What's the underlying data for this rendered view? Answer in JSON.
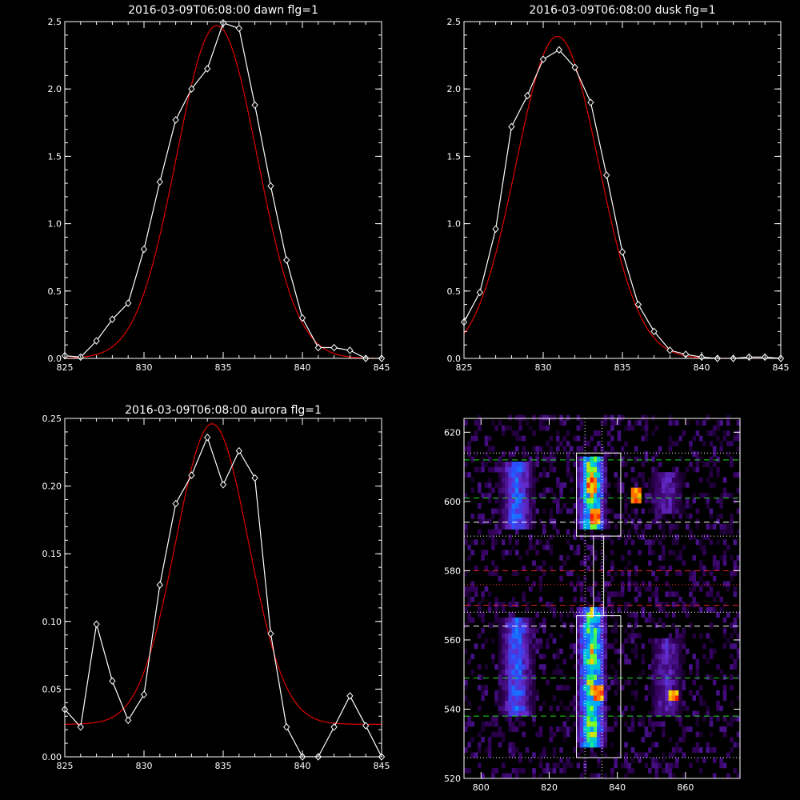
{
  "chart_data": [
    {
      "type": "line",
      "title": "2016-03-09T06:08:00 dawn flg=1",
      "xlim": [
        825,
        845
      ],
      "ylim": [
        0,
        2.5
      ],
      "xticks": [
        825,
        830,
        835,
        840,
        845
      ],
      "yticks": [
        0.0,
        0.5,
        1.0,
        1.5,
        2.0,
        2.5
      ],
      "ytick_format": 1,
      "fit": {
        "color": "#e00000",
        "amplitude": 2.47,
        "center": 834.6,
        "sigma": 2.55,
        "offset": 0.0
      },
      "series": [
        {
          "color": "#ffffff",
          "x": [
            825,
            826,
            827,
            828,
            829,
            830,
            831,
            832,
            833,
            834,
            835,
            836,
            837,
            838,
            839,
            840,
            841,
            842,
            843,
            844,
            845
          ],
          "y": [
            0.02,
            0.01,
            0.13,
            0.29,
            0.41,
            0.81,
            1.31,
            1.77,
            2.0,
            2.15,
            2.49,
            2.45,
            1.88,
            1.28,
            0.73,
            0.3,
            0.08,
            0.08,
            0.06,
            0.0,
            0.0
          ]
        }
      ]
    },
    {
      "type": "line",
      "title": "2016-03-09T06:08:00 dusk flg=1",
      "xlim": [
        825,
        845
      ],
      "ylim": [
        0,
        2.5
      ],
      "xticks": [
        825,
        830,
        835,
        840,
        845
      ],
      "yticks": [
        0.0,
        0.5,
        1.0,
        1.5,
        2.0,
        2.5
      ],
      "ytick_format": 1,
      "fit": {
        "color": "#e00000",
        "amplitude": 2.39,
        "center": 830.9,
        "sigma": 2.6,
        "offset": 0.0
      },
      "series": [
        {
          "color": "#ffffff",
          "x": [
            825,
            826,
            827,
            828,
            829,
            830,
            831,
            832,
            833,
            834,
            835,
            836,
            837,
            838,
            839,
            840,
            841,
            842,
            843,
            844,
            845
          ],
          "y": [
            0.27,
            0.49,
            0.96,
            1.72,
            1.95,
            2.22,
            2.29,
            2.16,
            1.9,
            1.36,
            0.79,
            0.4,
            0.2,
            0.06,
            0.03,
            0.01,
            0.0,
            0.0,
            0.01,
            0.01,
            0.0
          ]
        }
      ]
    },
    {
      "type": "line",
      "title": "2016-03-09T06:08:00 aurora flg=1",
      "xlim": [
        825,
        845
      ],
      "ylim": [
        0,
        0.25
      ],
      "xticks": [
        825,
        830,
        835,
        840,
        845
      ],
      "yticks": [
        0.0,
        0.05,
        0.1,
        0.15,
        0.2,
        0.25
      ],
      "ytick_format": 2,
      "fit": {
        "color": "#e00000",
        "amplitude": 0.222,
        "center": 834.3,
        "sigma": 2.3,
        "offset": 0.024
      },
      "series": [
        {
          "color": "#ffffff",
          "x": [
            825,
            826,
            827,
            828,
            829,
            830,
            831,
            832,
            833,
            834,
            835,
            836,
            837,
            838,
            839,
            840,
            841,
            842,
            843,
            844,
            845
          ],
          "y": [
            0.035,
            0.022,
            0.098,
            0.056,
            0.027,
            0.046,
            0.127,
            0.187,
            0.208,
            0.236,
            0.201,
            0.226,
            0.206,
            0.091,
            0.022,
            0.0,
            0.0,
            0.022,
            0.045,
            0.023,
            0.0
          ]
        }
      ]
    },
    {
      "type": "heatmap",
      "title": "",
      "xlim": [
        795,
        876
      ],
      "ylim": [
        520,
        624
      ],
      "xticks": [
        800,
        820,
        840,
        860
      ],
      "yticks": [
        520,
        540,
        560,
        580,
        600,
        620
      ],
      "bands": [
        {
          "x": 810,
          "halfwidth": 4,
          "ranges": [
            [
              592,
              610
            ],
            [
              538,
              566
            ]
          ],
          "strength": 0.55
        },
        {
          "x": 832,
          "halfwidth": 3.5,
          "ranges": [
            [
              592,
              612
            ],
            [
              528,
              568
            ]
          ],
          "strength": 0.95
        },
        {
          "x": 854,
          "halfwidth": 4,
          "ranges": [
            [
              596,
              608
            ],
            [
              538,
              560
            ]
          ],
          "strength": 0.35
        }
      ],
      "hotspots": [
        [
          832,
          604
        ],
        [
          834,
          544
        ],
        [
          833,
          595
        ],
        [
          856,
          543
        ],
        [
          845,
          601
        ]
      ],
      "boxes": [
        {
          "x0": 828,
          "x1": 841,
          "y0": 590,
          "y1": 614
        },
        {
          "x0": 833,
          "x1": 836,
          "y0": 567,
          "y1": 590
        },
        {
          "x0": 828,
          "x1": 841,
          "y0": 526,
          "y1": 567
        }
      ],
      "vlines": [
        {
          "x": 830.5,
          "style": "dotted",
          "color": "#ffffff"
        },
        {
          "x": 835.5,
          "style": "dotted",
          "color": "#ffffff"
        }
      ],
      "hlines": [
        {
          "y": 614,
          "style": "dotted",
          "color": "#ffffff"
        },
        {
          "y": 612,
          "style": "dashed",
          "color": "#22dd22"
        },
        {
          "y": 601,
          "style": "dashed",
          "color": "#22dd22"
        },
        {
          "y": 594,
          "style": "dashed",
          "color": "#ffffff"
        },
        {
          "y": 590,
          "style": "dotted",
          "color": "#ffffff"
        },
        {
          "y": 580,
          "style": "dashed",
          "color": "#ee2222"
        },
        {
          "y": 576,
          "style": "dotted",
          "color": "#ee2222"
        },
        {
          "y": 570,
          "style": "dashed",
          "color": "#ee2222"
        },
        {
          "y": 568,
          "style": "dotted",
          "color": "#ffffff"
        },
        {
          "y": 564,
          "style": "dashed",
          "color": "#ffffff"
        },
        {
          "y": 549,
          "style": "dashed",
          "color": "#22dd22"
        },
        {
          "y": 538,
          "style": "dashed",
          "color": "#22dd22"
        },
        {
          "y": 526,
          "style": "dotted",
          "color": "#ffffff"
        }
      ]
    }
  ]
}
